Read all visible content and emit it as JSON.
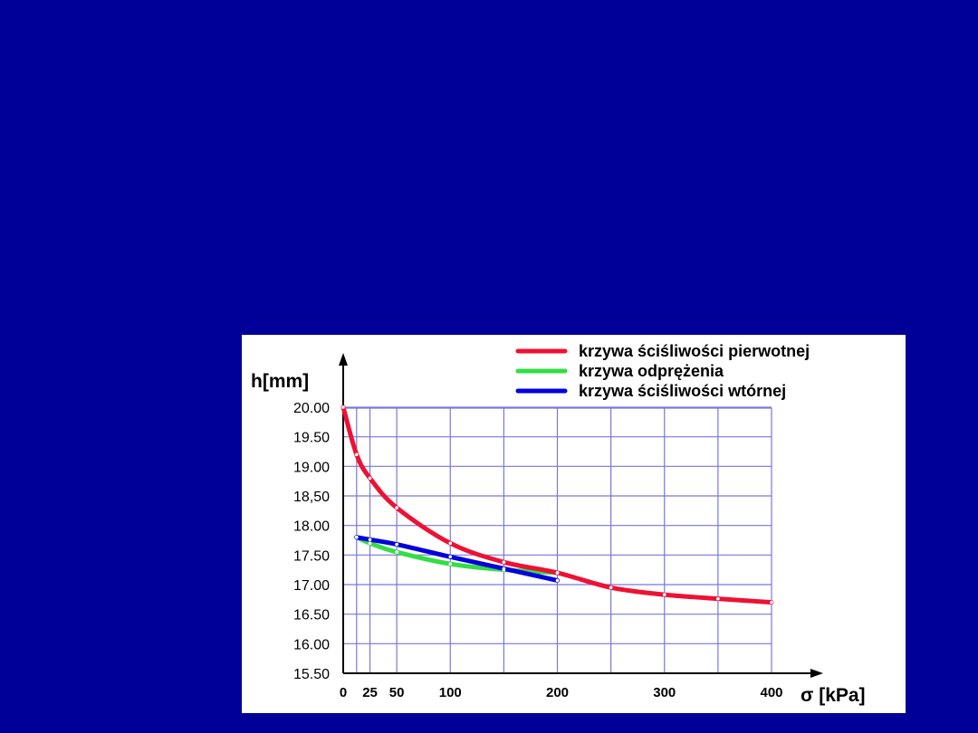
{
  "slide": {
    "background": "#000099"
  },
  "chart_data": {
    "type": "line",
    "ylabel": "h[mm]",
    "xlabel": "σ [kPa]",
    "x_ticks": [
      0,
      25,
      50,
      100,
      200,
      300,
      400
    ],
    "x_ticks_labels": [
      "0",
      "25",
      "50",
      "100",
      "200",
      "300",
      "400"
    ],
    "y_ticks_labels": [
      "20.00",
      "19.50",
      "19.00",
      "18,50",
      "18.00",
      "17.50",
      "17.00",
      "16.50",
      "16.00",
      "15.50"
    ],
    "xlim": [
      0,
      400
    ],
    "ylim": [
      15.5,
      20.0
    ],
    "grid": true,
    "legend_position": "top-right",
    "series": [
      {
        "name": "krzywa ściśliwości pierwotnej",
        "color": "#ee1133",
        "x": [
          0,
          12.5,
          25,
          50,
          100,
          150,
          200,
          250,
          300,
          350,
          400
        ],
        "y": [
          20.0,
          19.2,
          18.8,
          18.3,
          17.7,
          17.38,
          17.2,
          16.95,
          16.83,
          16.76,
          16.7
        ]
      },
      {
        "name": "krzywa odprężenia",
        "color": "#33dd44",
        "x": [
          12.5,
          25,
          50,
          100,
          150,
          200
        ],
        "y": [
          17.8,
          17.7,
          17.55,
          17.35,
          17.25,
          17.2
        ]
      },
      {
        "name": "krzywa ściśliwości wtórnej",
        "color": "#0000dd",
        "x": [
          12.5,
          25,
          50,
          100,
          150,
          200
        ],
        "y": [
          17.8,
          17.76,
          17.68,
          17.47,
          17.27,
          17.07
        ]
      }
    ]
  }
}
